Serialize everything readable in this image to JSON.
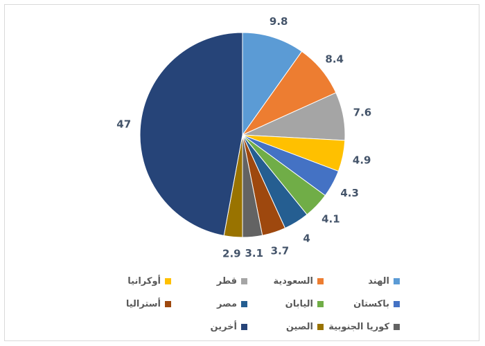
{
  "chart_data": {
    "type": "pie",
    "categories": [
      "الهند",
      "السعودية",
      "قطر",
      "أوكرانيا",
      "باكستان",
      "اليابان",
      "مصر",
      "أستراليا",
      "كوريا الجنوبية",
      "الصين",
      "أخرين"
    ],
    "values": [
      9.8,
      8.4,
      7.6,
      4.9,
      4.3,
      4.1,
      4,
      3.7,
      3.1,
      2.9,
      47
    ],
    "value_labels": [
      "9.8",
      "8.4",
      "7.6",
      "4.9",
      "4.3",
      "4.1",
      "4",
      "3.7",
      "3.1",
      "2.9",
      "47"
    ],
    "colors": [
      "#5b9bd5",
      "#ed7d31",
      "#a5a5a5",
      "#ffc000",
      "#4472c4",
      "#70ad47",
      "#255e91",
      "#9e480e",
      "#636363",
      "#997300",
      "#264478"
    ],
    "legend_position": "bottom",
    "title": ""
  }
}
